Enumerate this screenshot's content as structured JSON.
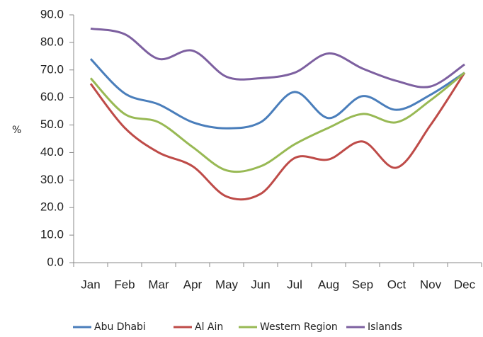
{
  "chart_data": {
    "type": "line",
    "y_label": "%",
    "categories": [
      "Jan",
      "Feb",
      "Mar",
      "Apr",
      "May",
      "Jun",
      "Jul",
      "Aug",
      "Sep",
      "Oct",
      "Nov",
      "Dec"
    ],
    "series": [
      {
        "name": "Abu Dhabi",
        "color": "#4a7ebb",
        "values": [
          74,
          61.5,
          57.5,
          51,
          48.8,
          51,
          62,
          52.5,
          60.5,
          55.5,
          61,
          69
        ]
      },
      {
        "name": "Al Ain",
        "color": "#be4b48",
        "values": [
          65,
          49,
          40,
          35,
          24,
          25,
          38,
          37.5,
          44,
          34.5,
          50,
          69
        ]
      },
      {
        "name": "Western Region",
        "color": "#98b954",
        "values": [
          67,
          54,
          51,
          42,
          33.5,
          35,
          43,
          49,
          54,
          51,
          59,
          69
        ]
      },
      {
        "name": "Islands",
        "color": "#7d60a0",
        "values": [
          85,
          83,
          74,
          77,
          67.5,
          67,
          69,
          76,
          70.5,
          66,
          64,
          72
        ]
      }
    ],
    "ylim": [
      0,
      90
    ],
    "yticks": [
      {
        "value": 0,
        "label": "0.0"
      },
      {
        "value": 10,
        "label": "10.0"
      },
      {
        "value": 20,
        "label": "20.0"
      },
      {
        "value": 30,
        "label": "30.0"
      },
      {
        "value": 40,
        "label": "40.0"
      },
      {
        "value": 50,
        "label": "50.0"
      },
      {
        "value": 60,
        "label": "60.0"
      },
      {
        "value": 70,
        "label": "70.0"
      },
      {
        "value": 80,
        "label": "80.0"
      },
      {
        "value": 90,
        "label": "90.0"
      }
    ],
    "legend": "bottom"
  }
}
